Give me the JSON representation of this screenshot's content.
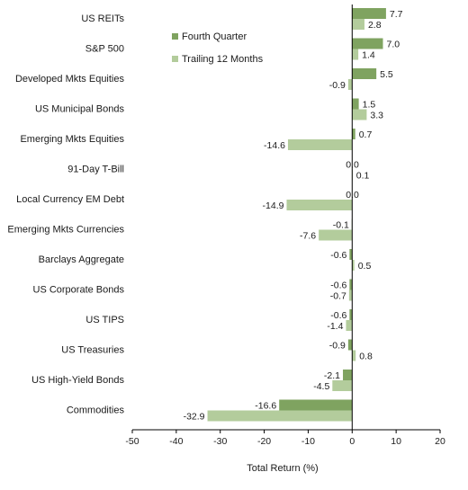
{
  "chart_data": {
    "type": "bar",
    "orientation": "horizontal",
    "categories": [
      "US REITs",
      "S&P 500",
      "Developed Mkts Equities",
      "US Municipal Bonds",
      "Emerging Mkts Equities",
      "91-Day T-Bill",
      "Local Currency EM Debt",
      "Emerging Mkts Currencies",
      "Barclays Aggregate",
      "US Corporate Bonds",
      "US TIPS",
      "US Treasuries",
      "US High-Yield Bonds",
      "Commodities"
    ],
    "series": [
      {
        "name": "Fourth Quarter",
        "color": "#7fa360",
        "values": [
          7.7,
          7.0,
          5.5,
          1.5,
          0.7,
          0.0,
          0.0,
          -0.1,
          -0.6,
          -0.6,
          -0.6,
          -0.9,
          -2.1,
          -16.6
        ],
        "labels": [
          "7.7",
          "7.0",
          "5.5",
          "1.5",
          "0.7",
          "0.0",
          "0.0",
          "-0.1",
          "-0.6",
          "-0.6",
          "-0.6",
          "-0.9",
          "-2.1",
          "-16.6"
        ]
      },
      {
        "name": "Trailing 12 Months",
        "color": "#b3cc9c",
        "values": [
          2.8,
          1.4,
          -0.9,
          3.3,
          -14.6,
          0.1,
          -14.9,
          -7.6,
          0.5,
          -0.7,
          -1.4,
          0.8,
          -4.5,
          -32.9
        ],
        "labels": [
          "2.8",
          "1.4",
          "-0.9",
          "3.3",
          "-14.6",
          "0.1",
          "-14.9",
          "-7.6",
          "0.5",
          "-0.7",
          "-1.4",
          "0.8",
          "-4.5",
          "-32.9"
        ]
      }
    ],
    "xlabel": "Total Return (%)",
    "xlim": [
      -50,
      20
    ],
    "xticks": [
      -50,
      -40,
      -30,
      -20,
      -10,
      0,
      10,
      20
    ],
    "grid": false,
    "legend": "top-center"
  }
}
